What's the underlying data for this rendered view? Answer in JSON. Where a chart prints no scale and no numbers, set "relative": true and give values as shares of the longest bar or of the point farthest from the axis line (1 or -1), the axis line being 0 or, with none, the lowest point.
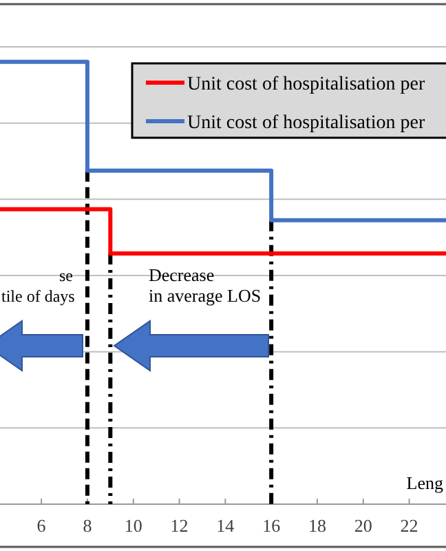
{
  "chart_data": {
    "type": "step",
    "relative": true,
    "xlabel": "Leng",
    "xlim": [
      4.2,
      23.6
    ],
    "xticks": [
      6,
      8,
      10,
      12,
      14,
      16,
      18,
      20,
      22
    ],
    "grid": "y",
    "legend": "top right",
    "series": [
      {
        "name": "Unit cost of hospitalisation per",
        "color": "#ff0000",
        "x": [
          4.2,
          9,
          23.6
        ],
        "values": [
          0.667,
          0.567,
          0.567
        ]
      },
      {
        "name": "Unit cost of hospitalisation per",
        "color": "#4472c4",
        "x": [
          4.2,
          8,
          16,
          23.6
        ],
        "values": [
          1,
          0.754,
          0.642,
          0.642
        ]
      }
    ],
    "ref_lines": [
      {
        "axis": "x",
        "value": 8,
        "color": "#000000",
        "line_style": "dashed"
      },
      {
        "axis": "x",
        "value": 9,
        "color": "#000000",
        "line_style": "dashdot"
      },
      {
        "axis": "x",
        "value": 16,
        "color": "#000000",
        "line_style": "dashdot"
      }
    ],
    "annotations": [
      "se\ntile of days",
      "Decrease\nin average LOS"
    ]
  }
}
